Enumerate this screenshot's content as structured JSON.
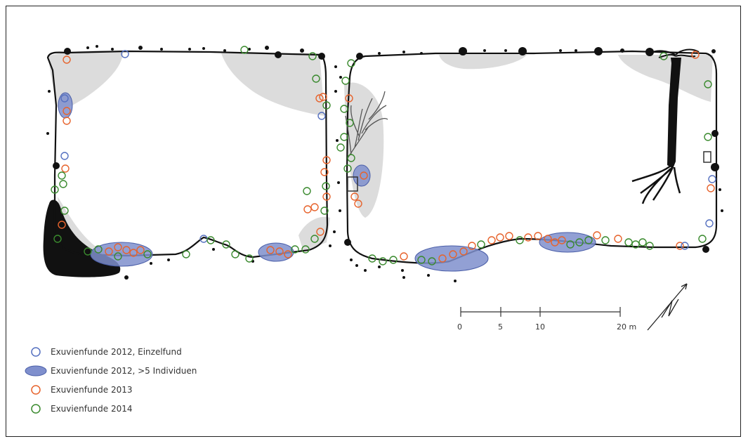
{
  "colors": {
    "blue_single": "#5570c0",
    "blue_group_fill": "#7f8fcd",
    "orange": "#e7632c",
    "green": "#3a8a2e",
    "gray_area": "#dcdcdc",
    "black": "#111111"
  },
  "legend": {
    "items": [
      {
        "label": "Exuvienfunde 2012, Einzelfund",
        "symbol": "blue-open-circle"
      },
      {
        "label": "Exuvienfunde 2012, >5 Individuen",
        "symbol": "blue-filled-ellipse"
      },
      {
        "label": "Exuvienfunde 2013",
        "symbol": "orange-open-circle"
      },
      {
        "label": "Exuvienfunde 2014",
        "symbol": "green-open-circle"
      }
    ]
  },
  "scale_bar": {
    "ticks": [
      "0",
      "5",
      "10",
      "20 m"
    ]
  },
  "north_arrow": {
    "icon": "north-arrow-icon"
  }
}
